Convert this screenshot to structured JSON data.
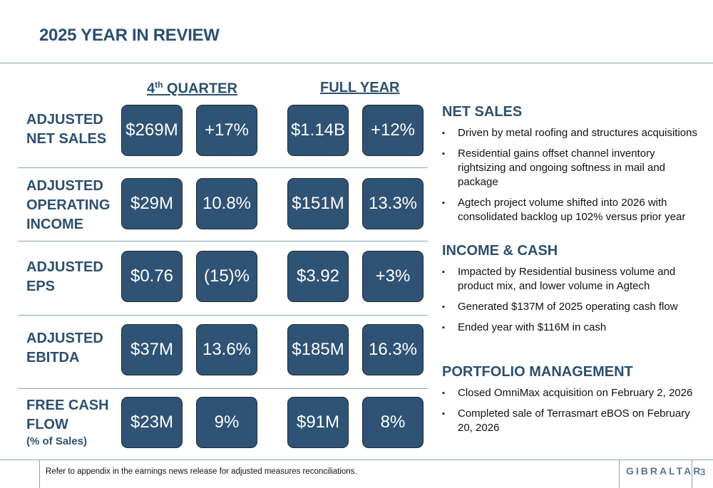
{
  "title": "2025 YEAR IN REVIEW",
  "columns": {
    "quarter_prefix": "4",
    "quarter_sup": "th",
    "quarter_rest": " QUARTER",
    "full_year": "FULL YEAR"
  },
  "rows": [
    {
      "label": [
        "ADJUSTED",
        "NET SALES"
      ],
      "values": [
        "$269M",
        "+17%",
        "$1.14B",
        "+12%"
      ]
    },
    {
      "label": [
        "ADJUSTED",
        "OPERATING",
        "INCOME"
      ],
      "values": [
        "$29M",
        "10.8%",
        "$151M",
        "13.3%"
      ]
    },
    {
      "label": [
        "ADJUSTED",
        "EPS"
      ],
      "values": [
        "$0.76",
        "(15)%",
        "$3.92",
        "+3%"
      ]
    },
    {
      "label": [
        "ADJUSTED",
        "EBITDA"
      ],
      "values": [
        "$37M",
        "13.6%",
        "$185M",
        "16.3%"
      ]
    },
    {
      "label": [
        "FREE CASH",
        "FLOW"
      ],
      "sublabel": "(% of Sales)",
      "values": [
        "$23M",
        "9%",
        "$91M",
        "8%"
      ]
    }
  ],
  "sections": [
    {
      "heading": "NET SALES",
      "bullets": [
        "Driven by metal roofing and structures acquisitions",
        "Residential gains offset channel inventory rightsizing and ongoing softness in mail and package",
        "Agtech project volume shifted into 2026 with consolidated backlog up 102% versus prior year"
      ]
    },
    {
      "heading": "INCOME & CASH",
      "bullets": [
        "Impacted by Residential business volume and product mix, and lower volume in Agtech",
        "Generated $137M of 2025 operating cash flow",
        "Ended year with $116M in cash"
      ]
    },
    {
      "heading": "PORTFOLIO MANAGEMENT",
      "bullets": [
        "Closed OmniMax acquisition on February 2, 2026",
        "Completed sale of Terrasmart eBOS on February 20, 2026"
      ]
    }
  ],
  "footer": {
    "note": "Refer to appendix in the earnings news release for adjusted measures reconciliations.",
    "logo": "GIBRALTAR",
    "page": "3"
  }
}
